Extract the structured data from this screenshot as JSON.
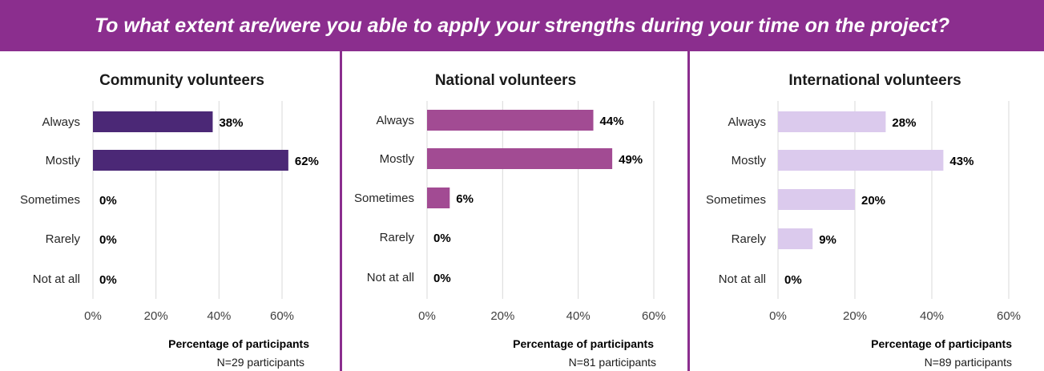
{
  "title": "To what extent are/were you able to apply your strengths during your time on the project?",
  "colors": {
    "banner": "#8b2e8e",
    "divider": "#8b2e8e"
  },
  "chart_data": [
    {
      "type": "bar",
      "orientation": "horizontal",
      "title": "Community volunteers",
      "categories": [
        "Always",
        "Mostly",
        "Sometimes",
        "Rarely",
        "Not at all"
      ],
      "values": [
        38,
        62,
        0,
        0,
        0
      ],
      "value_labels": [
        "38%",
        "62%",
        "0%",
        "0%",
        "0%"
      ],
      "xlim": [
        0,
        60
      ],
      "xticks": [
        "0%",
        "20%",
        "40%",
        "60%"
      ],
      "xlabel": "Percentage of participants",
      "note": "N=29 participants",
      "color": "#4b2876",
      "grid": true
    },
    {
      "type": "bar",
      "orientation": "horizontal",
      "title": "National volunteers",
      "categories": [
        "Always",
        "Mostly",
        "Sometimes",
        "Rarely",
        "Not at all"
      ],
      "values": [
        44,
        49,
        6,
        0,
        0
      ],
      "value_labels": [
        "44%",
        "49%",
        "6%",
        "0%",
        "0%"
      ],
      "xlim": [
        0,
        60
      ],
      "xticks": [
        "0%",
        "20%",
        "40%",
        "60%"
      ],
      "xlabel": "Percentage of participants",
      "note": "N=81 participants",
      "color": "#a24b93",
      "grid": true
    },
    {
      "type": "bar",
      "orientation": "horizontal",
      "title": "International volunteers",
      "categories": [
        "Always",
        "Mostly",
        "Sometimes",
        "Rarely",
        "Not at all"
      ],
      "values": [
        28,
        43,
        20,
        9,
        0
      ],
      "value_labels": [
        "28%",
        "43%",
        "20%",
        "9%",
        "0%"
      ],
      "xlim": [
        0,
        60
      ],
      "xticks": [
        "0%",
        "20%",
        "40%",
        "60%"
      ],
      "xlabel": "Percentage of participants",
      "note": "N=89 participants",
      "color": "#dbcaed",
      "grid": true
    }
  ]
}
